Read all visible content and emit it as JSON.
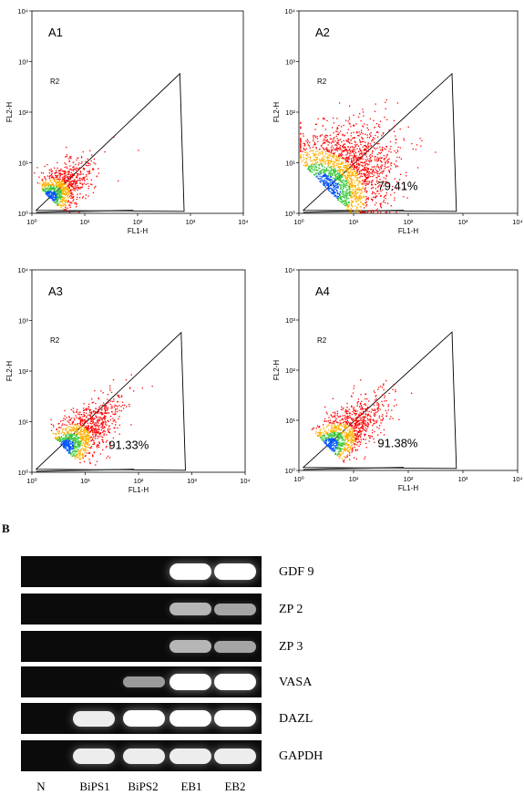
{
  "figure_a": {
    "axis_x_label": "FL1-H",
    "axis_y_label": "FL2-H",
    "tick_labels": [
      "10⁰",
      "10¹",
      "10²",
      "10³",
      "10⁴"
    ],
    "region_label": "R2",
    "panels": [
      {
        "id": "A1",
        "percent": ""
      },
      {
        "id": "A2",
        "percent": "79.41%"
      },
      {
        "id": "A3",
        "percent": "91.33%"
      },
      {
        "id": "A4",
        "percent": "91.38%"
      }
    ],
    "colors": {
      "low": "#ff0000",
      "mid": "#ffb000",
      "high": "#3cc83c",
      "core": "#0055ff"
    }
  },
  "figure_b": {
    "label": "B",
    "lanes": [
      "N",
      "BiPS1",
      "BiPS2",
      "EB1",
      "EB2"
    ],
    "genes": [
      {
        "name": "GDF 9",
        "bands": [
          0,
          0,
          0,
          1.0,
          1.0
        ]
      },
      {
        "name": "ZP 2",
        "bands": [
          0,
          0,
          0,
          0.6,
          0.5
        ]
      },
      {
        "name": "ZP 3",
        "bands": [
          0,
          0,
          0,
          0.6,
          0.5
        ]
      },
      {
        "name": "VASA",
        "bands": [
          0,
          0,
          0.45,
          1.0,
          1.0
        ]
      },
      {
        "name": "DAZL",
        "bands": [
          0,
          0.9,
          1.0,
          1.0,
          1.0
        ]
      },
      {
        "name": "GAPDH",
        "bands": [
          0,
          0.9,
          0.9,
          0.9,
          0.9
        ]
      }
    ]
  }
}
